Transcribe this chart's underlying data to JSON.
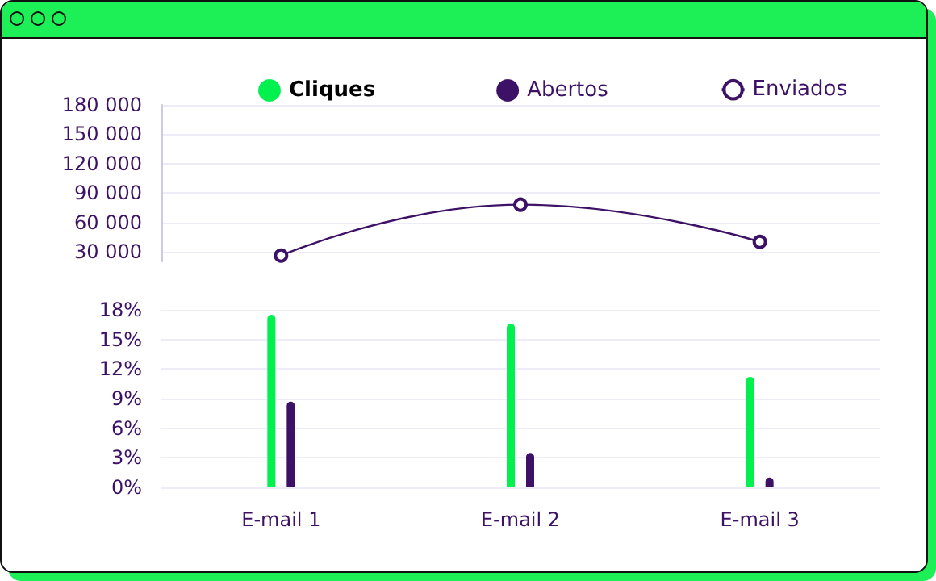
{
  "chart_data": [
    {
      "type": "line",
      "categories": [
        null,
        null,
        null
      ],
      "series": [
        {
          "name": "Enviados",
          "color": "#3d1266",
          "values": [
            26000,
            78000,
            40000
          ]
        }
      ],
      "ylim": [
        20000,
        180000
      ],
      "yticks": [
        {
          "value": 30000,
          "label": "30 000"
        },
        {
          "value": 60000,
          "label": "60 000"
        },
        {
          "value": 90000,
          "label": "90 000"
        },
        {
          "value": 120000,
          "label": "120 000"
        },
        {
          "value": 150000,
          "label": "150 000"
        },
        {
          "value": 180000,
          "label": "180 000"
        }
      ],
      "tick_labels": "y",
      "grid": "y",
      "legend": "top right",
      "marker": "circle"
    },
    {
      "type": "bar",
      "categories": [
        "E-mail 1",
        "E-mail 2",
        "E-mail 3"
      ],
      "series": [
        {
          "name": "Cliques",
          "color": "#00f04e",
          "values": [
            17.5,
            16.6,
            11.2
          ]
        },
        {
          "name": "Abertos",
          "color": "#3d1266",
          "values": [
            8.7,
            3.5,
            1.0
          ]
        }
      ],
      "ylim": [
        0,
        18
      ],
      "yticks": [
        {
          "value": 0,
          "label": "0%"
        },
        {
          "value": 3,
          "label": "3%"
        },
        {
          "value": 6,
          "label": "6%"
        },
        {
          "value": 9,
          "label": "9%"
        },
        {
          "value": 12,
          "label": "12%"
        },
        {
          "value": 15,
          "label": "15%"
        },
        {
          "value": 18,
          "label": "18%"
        }
      ],
      "grid": "y",
      "legend": "top"
    }
  ]
}
